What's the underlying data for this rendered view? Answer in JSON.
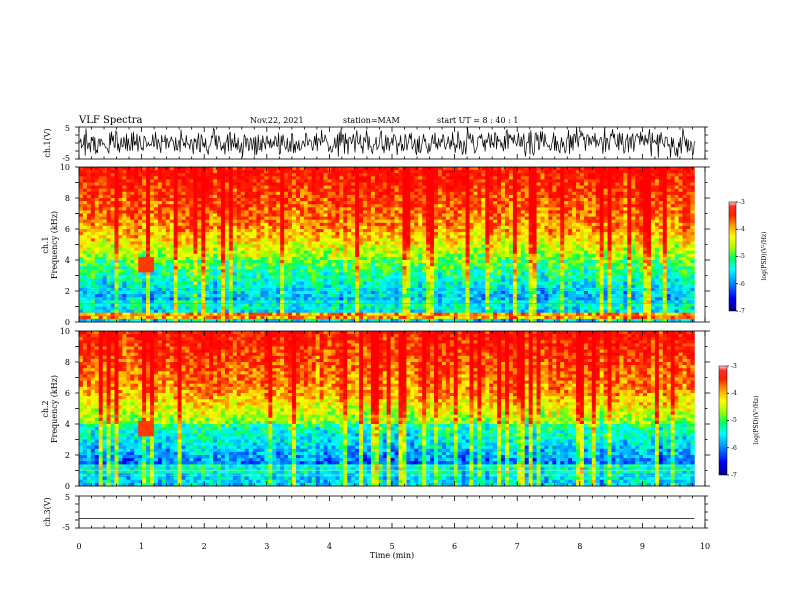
{
  "header": {
    "title": "VLF Spectra",
    "date": "Nov.22, 2021",
    "station": "station=MAM",
    "start": "start UT = 8 : 40 : 1"
  },
  "colors": {
    "spectrogram_scale": [
      "#000080",
      "#0000ff",
      "#00a0ff",
      "#00ffff",
      "#00ff60",
      "#a0ff00",
      "#ffff00",
      "#ffa000",
      "#ff2000",
      "#ff0000"
    ]
  },
  "chart_data": [
    {
      "name": "waveform-ch1",
      "type": "line",
      "ylabel": "ch.1(V)",
      "ylim": [
        -5,
        5
      ],
      "yticks": [
        "5",
        "-5"
      ],
      "xlim": [
        0,
        10
      ],
      "grid": false,
      "amplitude_range": [
        -5,
        5
      ]
    },
    {
      "name": "spectrogram-ch1",
      "type": "heatmap",
      "ylabel": [
        "ch.1",
        "Frequency (kHz)"
      ],
      "ylim": [
        0,
        10
      ],
      "yticks": [
        "0",
        "2",
        "4",
        "6",
        "8",
        "10"
      ],
      "xlim": [
        0,
        10
      ],
      "data_end_min": 9.83,
      "colorbar": {
        "label": "log(PSD)(V²/Hz)",
        "range": [
          -7,
          -3
        ],
        "ticks": [
          "-3",
          "-4",
          "-5",
          "-6",
          "-7"
        ]
      }
    },
    {
      "name": "spectrogram-ch2",
      "type": "heatmap",
      "ylabel": [
        "ch.2",
        "Frequency (kHz)"
      ],
      "ylim": [
        0,
        10
      ],
      "yticks": [
        "0",
        "2",
        "4",
        "6",
        "8",
        "10"
      ],
      "xlim": [
        0,
        10
      ],
      "data_end_min": 9.83,
      "colorbar": {
        "label": "log(PSD)(V²/Hz)",
        "range": [
          -7,
          -3
        ],
        "ticks": [
          "-3",
          "-4",
          "-5",
          "-6",
          "-7"
        ]
      }
    },
    {
      "name": "waveform-ch3",
      "type": "line",
      "ylabel": "ch.3(V)",
      "ylim": [
        -5,
        5
      ],
      "yticks": [
        "5",
        "-5"
      ],
      "xlim": [
        0,
        10
      ],
      "grid": false,
      "flat_value": -2
    }
  ],
  "xaxis": {
    "label": "Time (min)",
    "ticks": [
      "0",
      "1",
      "2",
      "3",
      "4",
      "5",
      "6",
      "7",
      "8",
      "9",
      "10"
    ]
  }
}
